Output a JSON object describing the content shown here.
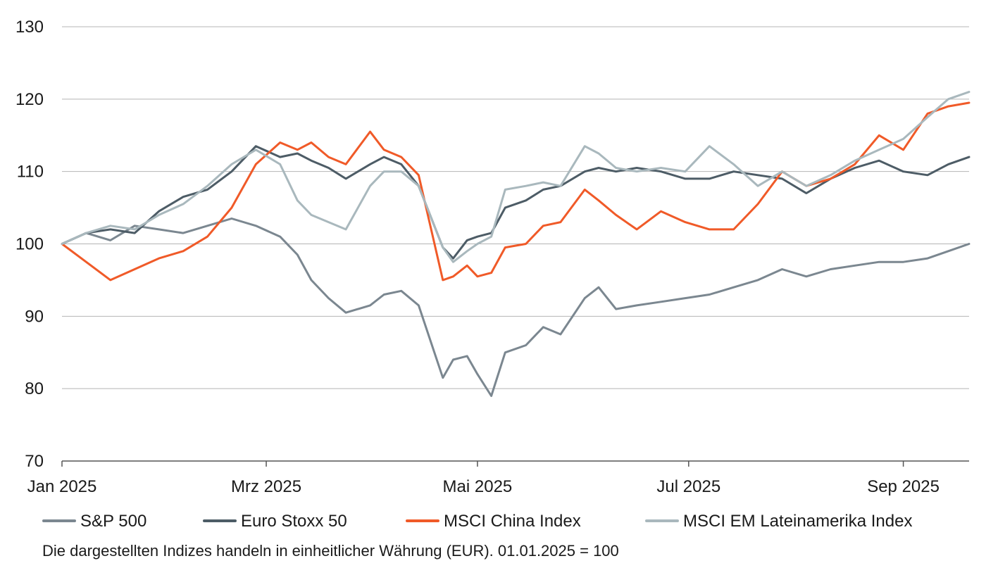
{
  "chart_data": {
    "type": "line",
    "xlim": [
      "2025-01-01",
      "2025-09-20"
    ],
    "ylim": [
      70,
      130
    ],
    "y_ticks": [
      70,
      80,
      90,
      100,
      110,
      120,
      130
    ],
    "x_ticks": [
      {
        "date": "2025-01-01",
        "label": "Jan 2025"
      },
      {
        "date": "2025-03-01",
        "label": "Mrz 2025"
      },
      {
        "date": "2025-05-01",
        "label": "Mai 2025"
      },
      {
        "date": "2025-07-01",
        "label": "Jul 2025"
      },
      {
        "date": "2025-09-01",
        "label": "Sep 2025"
      }
    ],
    "grid": "horizontal",
    "legend_position": "bottom",
    "note": "Die dargestellten Indizes handeln in einheitlicher Währung (EUR). 01.01.2025 = 100",
    "series": [
      {
        "name": "S&P 500",
        "color": "#7b8790",
        "points": [
          [
            "2025-01-01",
            100
          ],
          [
            "2025-01-08",
            101.5
          ],
          [
            "2025-01-15",
            100.5
          ],
          [
            "2025-01-22",
            102.5
          ],
          [
            "2025-01-29",
            102
          ],
          [
            "2025-02-05",
            101.5
          ],
          [
            "2025-02-12",
            102.5
          ],
          [
            "2025-02-19",
            103.5
          ],
          [
            "2025-02-26",
            102.5
          ],
          [
            "2025-03-05",
            101
          ],
          [
            "2025-03-10",
            98.5
          ],
          [
            "2025-03-14",
            95
          ],
          [
            "2025-03-19",
            92.5
          ],
          [
            "2025-03-24",
            90.5
          ],
          [
            "2025-03-31",
            91.5
          ],
          [
            "2025-04-04",
            93
          ],
          [
            "2025-04-09",
            93.5
          ],
          [
            "2025-04-14",
            91.5
          ],
          [
            "2025-04-21",
            81.5
          ],
          [
            "2025-04-24",
            84
          ],
          [
            "2025-04-28",
            84.5
          ],
          [
            "2025-05-01",
            82
          ],
          [
            "2025-05-05",
            79
          ],
          [
            "2025-05-09",
            85
          ],
          [
            "2025-05-15",
            86
          ],
          [
            "2025-05-20",
            88.5
          ],
          [
            "2025-05-25",
            87.5
          ],
          [
            "2025-06-01",
            92.5
          ],
          [
            "2025-06-05",
            94
          ],
          [
            "2025-06-10",
            91
          ],
          [
            "2025-06-16",
            91.5
          ],
          [
            "2025-06-23",
            92
          ],
          [
            "2025-06-30",
            92.5
          ],
          [
            "2025-07-07",
            93
          ],
          [
            "2025-07-14",
            94
          ],
          [
            "2025-07-21",
            95
          ],
          [
            "2025-07-28",
            96.5
          ],
          [
            "2025-08-04",
            95.5
          ],
          [
            "2025-08-11",
            96.5
          ],
          [
            "2025-08-18",
            97
          ],
          [
            "2025-08-25",
            97.5
          ],
          [
            "2025-09-01",
            97.5
          ],
          [
            "2025-09-08",
            98
          ],
          [
            "2025-09-14",
            99
          ],
          [
            "2025-09-20",
            100
          ]
        ]
      },
      {
        "name": "Euro Stoxx 50",
        "color": "#4d5c66",
        "points": [
          [
            "2025-01-01",
            100
          ],
          [
            "2025-01-08",
            101.5
          ],
          [
            "2025-01-15",
            102
          ],
          [
            "2025-01-22",
            101.5
          ],
          [
            "2025-01-29",
            104.5
          ],
          [
            "2025-02-05",
            106.5
          ],
          [
            "2025-02-12",
            107.5
          ],
          [
            "2025-02-19",
            110
          ],
          [
            "2025-02-26",
            113.5
          ],
          [
            "2025-03-05",
            112
          ],
          [
            "2025-03-10",
            112.5
          ],
          [
            "2025-03-14",
            111.5
          ],
          [
            "2025-03-19",
            110.5
          ],
          [
            "2025-03-24",
            109
          ],
          [
            "2025-03-31",
            111
          ],
          [
            "2025-04-04",
            112
          ],
          [
            "2025-04-09",
            111
          ],
          [
            "2025-04-14",
            108
          ],
          [
            "2025-04-21",
            99.5
          ],
          [
            "2025-04-24",
            98
          ],
          [
            "2025-04-28",
            100.5
          ],
          [
            "2025-05-01",
            101
          ],
          [
            "2025-05-05",
            101.5
          ],
          [
            "2025-05-09",
            105
          ],
          [
            "2025-05-15",
            106
          ],
          [
            "2025-05-20",
            107.5
          ],
          [
            "2025-05-25",
            108
          ],
          [
            "2025-06-01",
            110
          ],
          [
            "2025-06-05",
            110.5
          ],
          [
            "2025-06-10",
            110
          ],
          [
            "2025-06-16",
            110.5
          ],
          [
            "2025-06-23",
            110
          ],
          [
            "2025-06-30",
            109
          ],
          [
            "2025-07-07",
            109
          ],
          [
            "2025-07-14",
            110
          ],
          [
            "2025-07-21",
            109.5
          ],
          [
            "2025-07-28",
            109
          ],
          [
            "2025-08-04",
            107
          ],
          [
            "2025-08-11",
            109
          ],
          [
            "2025-08-18",
            110.5
          ],
          [
            "2025-08-25",
            111.5
          ],
          [
            "2025-09-01",
            110
          ],
          [
            "2025-09-08",
            109.5
          ],
          [
            "2025-09-14",
            111
          ],
          [
            "2025-09-20",
            112
          ]
        ]
      },
      {
        "name": "MSCI China Index",
        "color": "#f05a28",
        "points": [
          [
            "2025-01-01",
            100
          ],
          [
            "2025-01-08",
            97.5
          ],
          [
            "2025-01-15",
            95
          ],
          [
            "2025-01-22",
            96.5
          ],
          [
            "2025-01-29",
            98
          ],
          [
            "2025-02-05",
            99
          ],
          [
            "2025-02-12",
            101
          ],
          [
            "2025-02-19",
            105
          ],
          [
            "2025-02-26",
            111
          ],
          [
            "2025-03-05",
            114
          ],
          [
            "2025-03-10",
            113
          ],
          [
            "2025-03-14",
            114
          ],
          [
            "2025-03-19",
            112
          ],
          [
            "2025-03-24",
            111
          ],
          [
            "2025-03-31",
            115.5
          ],
          [
            "2025-04-04",
            113
          ],
          [
            "2025-04-09",
            112
          ],
          [
            "2025-04-14",
            109.5
          ],
          [
            "2025-04-21",
            95
          ],
          [
            "2025-04-24",
            95.5
          ],
          [
            "2025-04-28",
            97
          ],
          [
            "2025-05-01",
            95.5
          ],
          [
            "2025-05-05",
            96
          ],
          [
            "2025-05-09",
            99.5
          ],
          [
            "2025-05-15",
            100
          ],
          [
            "2025-05-20",
            102.5
          ],
          [
            "2025-05-25",
            103
          ],
          [
            "2025-06-01",
            107.5
          ],
          [
            "2025-06-05",
            106
          ],
          [
            "2025-06-10",
            104
          ],
          [
            "2025-06-16",
            102
          ],
          [
            "2025-06-23",
            104.5
          ],
          [
            "2025-06-30",
            103
          ],
          [
            "2025-07-07",
            102
          ],
          [
            "2025-07-14",
            102
          ],
          [
            "2025-07-21",
            105.5
          ],
          [
            "2025-07-28",
            110
          ],
          [
            "2025-08-04",
            108
          ],
          [
            "2025-08-11",
            109
          ],
          [
            "2025-08-18",
            111
          ],
          [
            "2025-08-25",
            115
          ],
          [
            "2025-09-01",
            113
          ],
          [
            "2025-09-08",
            118
          ],
          [
            "2025-09-14",
            119
          ],
          [
            "2025-09-20",
            119.5
          ]
        ]
      },
      {
        "name": "MSCI EM Lateinamerika Index",
        "color": "#a9b8bd",
        "points": [
          [
            "2025-01-01",
            100
          ],
          [
            "2025-01-08",
            101.5
          ],
          [
            "2025-01-15",
            102.5
          ],
          [
            "2025-01-22",
            102
          ],
          [
            "2025-01-29",
            104
          ],
          [
            "2025-02-05",
            105.5
          ],
          [
            "2025-02-12",
            108
          ],
          [
            "2025-02-19",
            111
          ],
          [
            "2025-02-26",
            113
          ],
          [
            "2025-03-05",
            111
          ],
          [
            "2025-03-10",
            106
          ],
          [
            "2025-03-14",
            104
          ],
          [
            "2025-03-19",
            103
          ],
          [
            "2025-03-24",
            102
          ],
          [
            "2025-03-31",
            108
          ],
          [
            "2025-04-04",
            110
          ],
          [
            "2025-04-09",
            110
          ],
          [
            "2025-04-14",
            108
          ],
          [
            "2025-04-21",
            99.5
          ],
          [
            "2025-04-24",
            97.5
          ],
          [
            "2025-04-28",
            99
          ],
          [
            "2025-05-01",
            100
          ],
          [
            "2025-05-05",
            101
          ],
          [
            "2025-05-09",
            107.5
          ],
          [
            "2025-05-15",
            108
          ],
          [
            "2025-05-20",
            108.5
          ],
          [
            "2025-05-25",
            108
          ],
          [
            "2025-06-01",
            113.5
          ],
          [
            "2025-06-05",
            112.5
          ],
          [
            "2025-06-10",
            110.5
          ],
          [
            "2025-06-16",
            110
          ],
          [
            "2025-06-23",
            110.5
          ],
          [
            "2025-06-30",
            110
          ],
          [
            "2025-07-07",
            113.5
          ],
          [
            "2025-07-14",
            111
          ],
          [
            "2025-07-21",
            108
          ],
          [
            "2025-07-28",
            110
          ],
          [
            "2025-08-04",
            108
          ],
          [
            "2025-08-11",
            109.5
          ],
          [
            "2025-08-18",
            111.5
          ],
          [
            "2025-08-25",
            113
          ],
          [
            "2025-09-01",
            114.5
          ],
          [
            "2025-09-08",
            117.5
          ],
          [
            "2025-09-14",
            120
          ],
          [
            "2025-09-20",
            121
          ]
        ]
      }
    ]
  }
}
